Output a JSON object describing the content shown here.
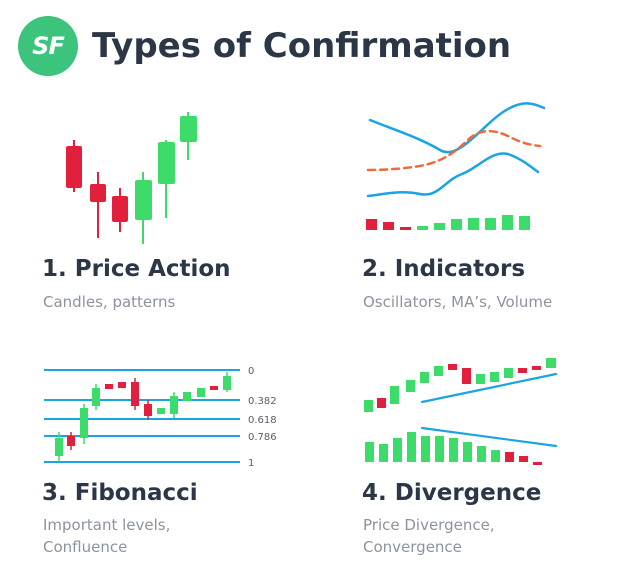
{
  "header": {
    "logo_text": "SF",
    "title": "Types of Confirmation"
  },
  "colors": {
    "green": "#3ddc6a",
    "red": "#e0203c",
    "blue": "#1aa4e4",
    "orange": "#ef6a3a",
    "text": "#2b3647",
    "muted": "#8c93a0"
  },
  "panels": [
    {
      "title": "1. Price Action",
      "subtitle_lines": [
        "Candles, patterns"
      ]
    },
    {
      "title": "2. Indicators",
      "subtitle_lines": [
        "Oscillators, MA’s, Volume"
      ]
    },
    {
      "title": "3. Fibonacci",
      "subtitle_lines": [
        "Important levels,",
        "Confluence"
      ]
    },
    {
      "title": "4. Divergence",
      "subtitle_lines": [
        "Price Divergence,",
        "Convergence"
      ]
    }
  ],
  "fibonacci_levels": [
    "0",
    "0.382",
    "0.618",
    "0.786",
    "1"
  ]
}
